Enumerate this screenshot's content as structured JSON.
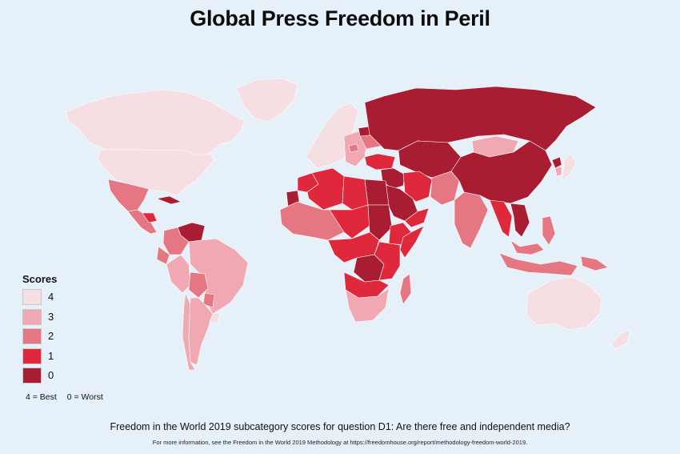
{
  "title": "Global Press Freedom in Peril",
  "legend": {
    "title": "Scores",
    "items": [
      {
        "score": "4",
        "color": "#f6dfe3"
      },
      {
        "score": "3",
        "color": "#f0a8b2"
      },
      {
        "score": "2",
        "color": "#e57783"
      },
      {
        "score": "1",
        "color": "#e0283c"
      },
      {
        "score": "0",
        "color": "#a91d32"
      }
    ],
    "note_best": "4 = Best",
    "note_worst": "0 = Worst"
  },
  "subtitle": "Freedom in the World 2019 subcategory scores for question D1: Are there free and independent media?",
  "footnote": "For more information, see the Freedom in the World 2019 Methodology at https://freedomhouse.org/report/methodology-freedom-world-2019.",
  "colors": {
    "ocean": "#e6f0f9",
    "border": "#ffffff"
  },
  "regions": [
    {
      "name": "Canada",
      "score": 4
    },
    {
      "name": "United States",
      "score": 4
    },
    {
      "name": "Greenland",
      "score": 4
    },
    {
      "name": "Mexico",
      "score": 2
    },
    {
      "name": "Central America",
      "score": 2
    },
    {
      "name": "Honduras",
      "score": 1
    },
    {
      "name": "Cuba",
      "score": 0
    },
    {
      "name": "Venezuela",
      "score": 0
    },
    {
      "name": "Colombia",
      "score": 2
    },
    {
      "name": "Ecuador",
      "score": 2
    },
    {
      "name": "Peru",
      "score": 3
    },
    {
      "name": "Brazil",
      "score": 3
    },
    {
      "name": "Bolivia",
      "score": 2
    },
    {
      "name": "Paraguay",
      "score": 2
    },
    {
      "name": "Argentina",
      "score": 3
    },
    {
      "name": "Chile",
      "score": 3
    },
    {
      "name": "Uruguay",
      "score": 4
    },
    {
      "name": "Western Europe",
      "score": 4
    },
    {
      "name": "Eastern Europe",
      "score": 3
    },
    {
      "name": "Hungary",
      "score": 2
    },
    {
      "name": "Ukraine",
      "score": 2
    },
    {
      "name": "Belarus",
      "score": 0
    },
    {
      "name": "Russia",
      "score": 0
    },
    {
      "name": "Turkey",
      "score": 1
    },
    {
      "name": "Morocco",
      "score": 1
    },
    {
      "name": "Western Sahara",
      "score": 0
    },
    {
      "name": "Algeria",
      "score": 1
    },
    {
      "name": "Libya",
      "score": 1
    },
    {
      "name": "Egypt",
      "score": 0
    },
    {
      "name": "West Africa",
      "score": 2
    },
    {
      "name": "Niger / Chad",
      "score": 1
    },
    {
      "name": "Sudan",
      "score": 0
    },
    {
      "name": "Ethiopia",
      "score": 1
    },
    {
      "name": "Somalia",
      "score": 1
    },
    {
      "name": "Central Africa",
      "score": 1
    },
    {
      "name": "DR Congo",
      "score": 0
    },
    {
      "name": "Kenya / Tanzania",
      "score": 1
    },
    {
      "name": "Angola / Zambia",
      "score": 1
    },
    {
      "name": "Southern Africa",
      "score": 3
    },
    {
      "name": "Madagascar",
      "score": 2
    },
    {
      "name": "Saudi Arabia",
      "score": 0
    },
    {
      "name": "Iraq / Syria",
      "score": 0
    },
    {
      "name": "Iran",
      "score": 1
    },
    {
      "name": "Yemen / Oman",
      "score": 1
    },
    {
      "name": "Central Asia",
      "score": 0
    },
    {
      "name": "Afghanistan / Pakistan",
      "score": 2
    },
    {
      "name": "India",
      "score": 2
    },
    {
      "name": "China",
      "score": 0
    },
    {
      "name": "Mongolia",
      "score": 3
    },
    {
      "name": "Myanmar / Thailand",
      "score": 1
    },
    {
      "name": "Vietnam / Laos",
      "score": 0
    },
    {
      "name": "Malaysia",
      "score": 2
    },
    {
      "name": "Indonesia",
      "score": 2
    },
    {
      "name": "Philippines",
      "score": 2
    },
    {
      "name": "Japan",
      "score": 4
    },
    {
      "name": "South Korea",
      "score": 3
    },
    {
      "name": "North Korea",
      "score": 0
    },
    {
      "name": "Australia",
      "score": 4
    },
    {
      "name": "New Zealand",
      "score": 4
    },
    {
      "name": "Papua New Guinea",
      "score": 2
    }
  ]
}
